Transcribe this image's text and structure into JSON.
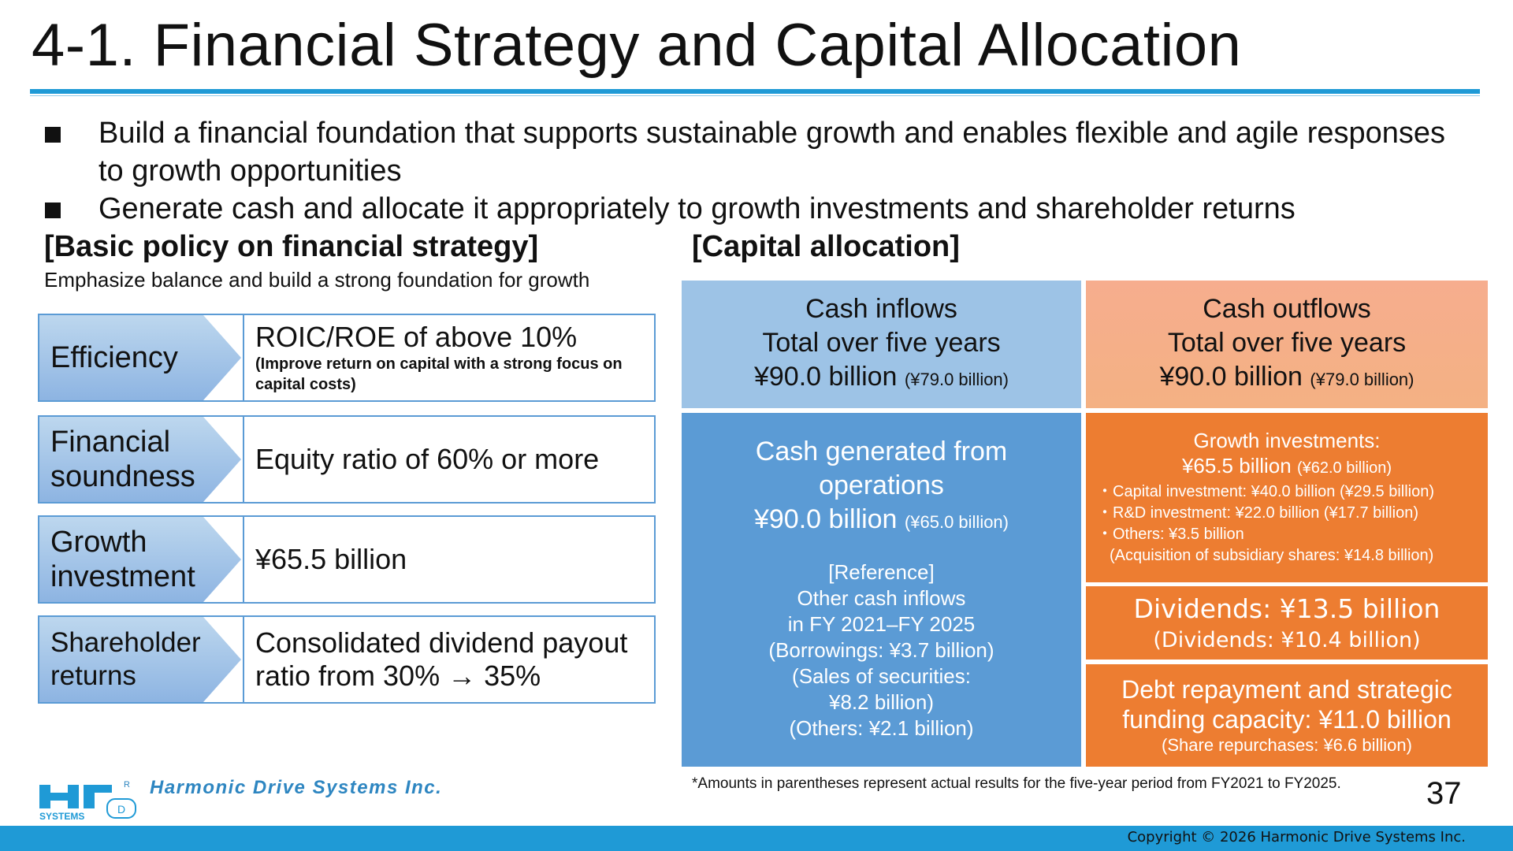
{
  "slide": {
    "title": "4-1. Financial Strategy and Capital Allocation",
    "page_number": "37",
    "copyright": "Copyright © 2026 Harmonic Drive Systems Inc.",
    "footnote": "*Amounts in parentheses represent actual results for the five-year period from FY2021 to FY2025."
  },
  "bullets": [
    "Build a financial foundation that supports sustainable growth and enables flexible and agile responses to growth opportunities",
    "Generate cash and allocate it appropriately to growth investments and shareholder returns"
  ],
  "policy": {
    "heading": "[Basic policy on financial strategy]",
    "subheading": "Emphasize balance and build a strong foundation for growth",
    "rows": [
      {
        "label": "Efficiency",
        "value": "ROIC/ROE of above 10%",
        "note": "(Improve return on capital with a strong focus on capital costs)"
      },
      {
        "label": "Financial soundness",
        "value": "Equity ratio of 60% or more",
        "note": ""
      },
      {
        "label": "Growth investment",
        "value": "¥65.5 billion",
        "note": ""
      },
      {
        "label": "Shareholder returns",
        "value": "Consolidated dividend payout ratio from 30% → 35%",
        "note": ""
      }
    ]
  },
  "allocation": {
    "heading": "[Capital allocation]",
    "inflows_header": {
      "line1": "Cash inflows",
      "line2": "Total over five years",
      "amount": "¥90.0 billion",
      "actual": "(¥79.0 billion)"
    },
    "outflows_header": {
      "line1": "Cash outflows",
      "line2": "Total over five years",
      "amount": "¥90.0 billion",
      "actual": "(¥79.0 billion)"
    },
    "operations": {
      "line1": "Cash generated from",
      "line2": "operations",
      "amount": "¥90.0 billion",
      "actual": "(¥65.0 billion)",
      "reference": [
        "[Reference]",
        "Other cash inflows",
        "in FY 2021–FY 2025",
        "(Borrowings: ¥3.7 billion)",
        "(Sales of securities:",
        "¥8.2 billion)",
        "(Others: ¥2.1 billion)"
      ]
    },
    "growth": {
      "heading": "Growth investments:",
      "amount": "¥65.5 billion",
      "actual": "(¥62.0 billion)",
      "items": [
        "・Capital investment: ¥40.0 billion (¥29.5 billion)",
        "・R&D investment: ¥22.0 billion (¥17.7 billion)",
        "・Others: ¥3.5 billion",
        "(Acquisition of subsidiary shares: ¥14.8 billion)"
      ]
    },
    "dividends": {
      "line1": "Dividends: ¥13.5 billion",
      "line2": "(Dividends: ¥10.4 billion)"
    },
    "debt": {
      "line1": "Debt repayment and strategic",
      "line2": "funding capacity: ¥11.0 billion",
      "line3": "(Share repurchases: ¥6.6 billion)"
    }
  },
  "logo": {
    "company": "Harmonic Drive Systems Inc.",
    "mark_text": "SYSTEMS",
    "registered": "R",
    "mark_d": "D"
  },
  "colors": {
    "accent_blue": "#1f9ad6",
    "policy_border": "#5b9bd5",
    "inflow_light": "#9dc3e6",
    "inflow_dark": "#5b9bd5",
    "outflow_light": "#f4b183",
    "outflow_dark": "#ed7d31"
  }
}
